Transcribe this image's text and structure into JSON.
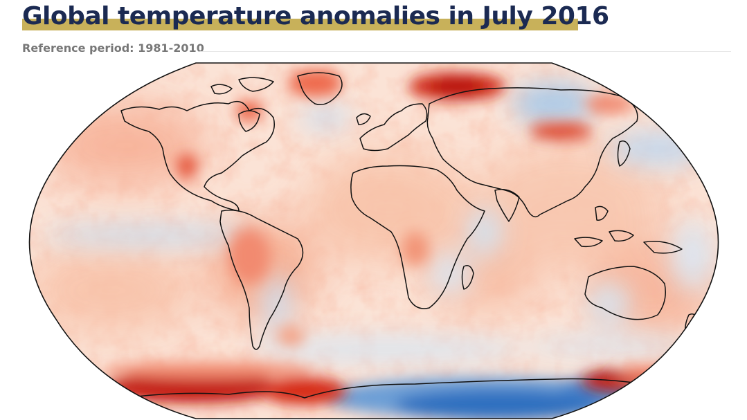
{
  "header": {
    "title": "Global temperature anomalies in July 2016",
    "subtitle": "Reference period: 1981-2010"
  },
  "map": {
    "projection": "robinson",
    "field": "surface air temperature anomaly",
    "colors": {
      "strong_warm": "#c0140c",
      "warm": "#ef6a4d",
      "mild_warm": "#f9c3a9",
      "neutral": "#fdf0ea",
      "mild_cool": "#dbe8f4",
      "cool": "#8cb8e0",
      "strong_cool": "#2e6fc0",
      "coastline": "#111111",
      "accent_underline": "#c8b15a",
      "title": "#1b2a52"
    }
  }
}
